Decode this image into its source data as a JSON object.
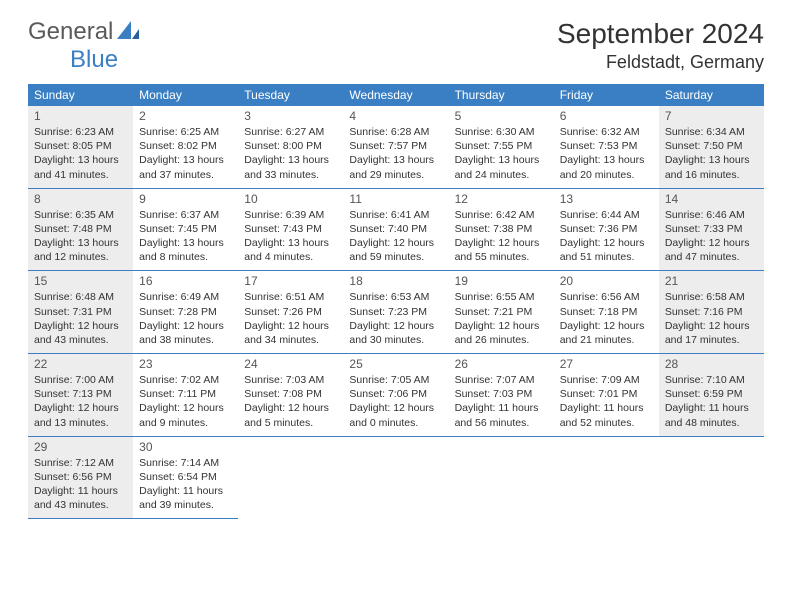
{
  "brand": {
    "part1": "General",
    "part2": "Blue"
  },
  "colors": {
    "accent": "#3a7fc4",
    "shaded": "#ededed",
    "text": "#333333",
    "logo_gray": "#5a5a5a"
  },
  "title": "September 2024",
  "location": "Feldstadt, Germany",
  "weekdays": [
    "Sunday",
    "Monday",
    "Tuesday",
    "Wednesday",
    "Thursday",
    "Friday",
    "Saturday"
  ],
  "weeks": [
    [
      {
        "n": "1",
        "shaded": true,
        "sunrise": "6:23 AM",
        "sunset": "8:05 PM",
        "day_h": "13",
        "day_m": "41"
      },
      {
        "n": "2",
        "shaded": false,
        "sunrise": "6:25 AM",
        "sunset": "8:02 PM",
        "day_h": "13",
        "day_m": "37"
      },
      {
        "n": "3",
        "shaded": false,
        "sunrise": "6:27 AM",
        "sunset": "8:00 PM",
        "day_h": "13",
        "day_m": "33"
      },
      {
        "n": "4",
        "shaded": false,
        "sunrise": "6:28 AM",
        "sunset": "7:57 PM",
        "day_h": "13",
        "day_m": "29"
      },
      {
        "n": "5",
        "shaded": false,
        "sunrise": "6:30 AM",
        "sunset": "7:55 PM",
        "day_h": "13",
        "day_m": "24"
      },
      {
        "n": "6",
        "shaded": false,
        "sunrise": "6:32 AM",
        "sunset": "7:53 PM",
        "day_h": "13",
        "day_m": "20"
      },
      {
        "n": "7",
        "shaded": true,
        "sunrise": "6:34 AM",
        "sunset": "7:50 PM",
        "day_h": "13",
        "day_m": "16"
      }
    ],
    [
      {
        "n": "8",
        "shaded": true,
        "sunrise": "6:35 AM",
        "sunset": "7:48 PM",
        "day_h": "13",
        "day_m": "12"
      },
      {
        "n": "9",
        "shaded": false,
        "sunrise": "6:37 AM",
        "sunset": "7:45 PM",
        "day_h": "13",
        "day_m": "8"
      },
      {
        "n": "10",
        "shaded": false,
        "sunrise": "6:39 AM",
        "sunset": "7:43 PM",
        "day_h": "13",
        "day_m": "4"
      },
      {
        "n": "11",
        "shaded": false,
        "sunrise": "6:41 AM",
        "sunset": "7:40 PM",
        "day_h": "12",
        "day_m": "59"
      },
      {
        "n": "12",
        "shaded": false,
        "sunrise": "6:42 AM",
        "sunset": "7:38 PM",
        "day_h": "12",
        "day_m": "55"
      },
      {
        "n": "13",
        "shaded": false,
        "sunrise": "6:44 AM",
        "sunset": "7:36 PM",
        "day_h": "12",
        "day_m": "51"
      },
      {
        "n": "14",
        "shaded": true,
        "sunrise": "6:46 AM",
        "sunset": "7:33 PM",
        "day_h": "12",
        "day_m": "47"
      }
    ],
    [
      {
        "n": "15",
        "shaded": true,
        "sunrise": "6:48 AM",
        "sunset": "7:31 PM",
        "day_h": "12",
        "day_m": "43"
      },
      {
        "n": "16",
        "shaded": false,
        "sunrise": "6:49 AM",
        "sunset": "7:28 PM",
        "day_h": "12",
        "day_m": "38"
      },
      {
        "n": "17",
        "shaded": false,
        "sunrise": "6:51 AM",
        "sunset": "7:26 PM",
        "day_h": "12",
        "day_m": "34"
      },
      {
        "n": "18",
        "shaded": false,
        "sunrise": "6:53 AM",
        "sunset": "7:23 PM",
        "day_h": "12",
        "day_m": "30"
      },
      {
        "n": "19",
        "shaded": false,
        "sunrise": "6:55 AM",
        "sunset": "7:21 PM",
        "day_h": "12",
        "day_m": "26"
      },
      {
        "n": "20",
        "shaded": false,
        "sunrise": "6:56 AM",
        "sunset": "7:18 PM",
        "day_h": "12",
        "day_m": "21"
      },
      {
        "n": "21",
        "shaded": true,
        "sunrise": "6:58 AM",
        "sunset": "7:16 PM",
        "day_h": "12",
        "day_m": "17"
      }
    ],
    [
      {
        "n": "22",
        "shaded": true,
        "sunrise": "7:00 AM",
        "sunset": "7:13 PM",
        "day_h": "12",
        "day_m": "13"
      },
      {
        "n": "23",
        "shaded": false,
        "sunrise": "7:02 AM",
        "sunset": "7:11 PM",
        "day_h": "12",
        "day_m": "9"
      },
      {
        "n": "24",
        "shaded": false,
        "sunrise": "7:03 AM",
        "sunset": "7:08 PM",
        "day_h": "12",
        "day_m": "5"
      },
      {
        "n": "25",
        "shaded": false,
        "sunrise": "7:05 AM",
        "sunset": "7:06 PM",
        "day_h": "12",
        "day_m": "0"
      },
      {
        "n": "26",
        "shaded": false,
        "sunrise": "7:07 AM",
        "sunset": "7:03 PM",
        "day_h": "11",
        "day_m": "56"
      },
      {
        "n": "27",
        "shaded": false,
        "sunrise": "7:09 AM",
        "sunset": "7:01 PM",
        "day_h": "11",
        "day_m": "52"
      },
      {
        "n": "28",
        "shaded": true,
        "sunrise": "7:10 AM",
        "sunset": "6:59 PM",
        "day_h": "11",
        "day_m": "48"
      }
    ],
    [
      {
        "n": "29",
        "shaded": true,
        "sunrise": "7:12 AM",
        "sunset": "6:56 PM",
        "day_h": "11",
        "day_m": "43"
      },
      {
        "n": "30",
        "shaded": false,
        "sunrise": "7:14 AM",
        "sunset": "6:54 PM",
        "day_h": "11",
        "day_m": "39"
      },
      null,
      null,
      null,
      null,
      null
    ]
  ],
  "labels": {
    "sunrise": "Sunrise:",
    "sunset": "Sunset:",
    "daylight": "Daylight:",
    "hours": "hours",
    "and": "and",
    "minutes": "minutes."
  }
}
